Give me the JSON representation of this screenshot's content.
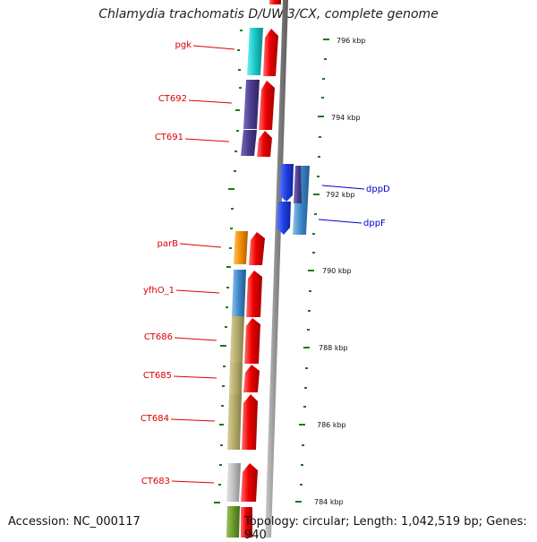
{
  "title": "Chlamydia trachomatis D/UW-3/CX, complete genome",
  "accession": "Accession: NC_000117",
  "summary": "Topology: circular; Length: 1,042,519 bp; Genes: 940",
  "genes": [
    {
      "name": "pgk",
      "label": "pgk",
      "color": "#17c6c6"
    },
    {
      "name": "ct692",
      "label": "CT692",
      "color": "#4a3a8c"
    },
    {
      "name": "ct691",
      "label": "CT691",
      "color": "#4a3a8c"
    },
    {
      "name": "dppd",
      "label": "dppD",
      "color": "#1f3fe0"
    },
    {
      "name": "dppf",
      "label": "dppF",
      "color": "#3a86c8"
    },
    {
      "name": "parb",
      "label": "parB",
      "color": "#f08a00"
    },
    {
      "name": "yfho1",
      "label": "yfhO_1",
      "color": "#3f7fbf"
    },
    {
      "name": "ct686",
      "label": "CT686",
      "color": "#b3aa6a"
    },
    {
      "name": "ct685",
      "label": "CT685",
      "color": "#b3aa6a"
    },
    {
      "name": "ct684",
      "label": "CT684",
      "color": "#b3aa6a"
    },
    {
      "name": "ct683",
      "label": "CT683",
      "color": "#bdbdbd"
    }
  ],
  "ticks": [
    "796 kbp",
    "794 kbp",
    "792 kbp",
    "790 kbp",
    "788 kbp",
    "786 kbp",
    "784 kbp"
  ],
  "colors": {
    "cds": "#ee0000",
    "backbone": "#888888",
    "tick": "#1a7a1a"
  }
}
